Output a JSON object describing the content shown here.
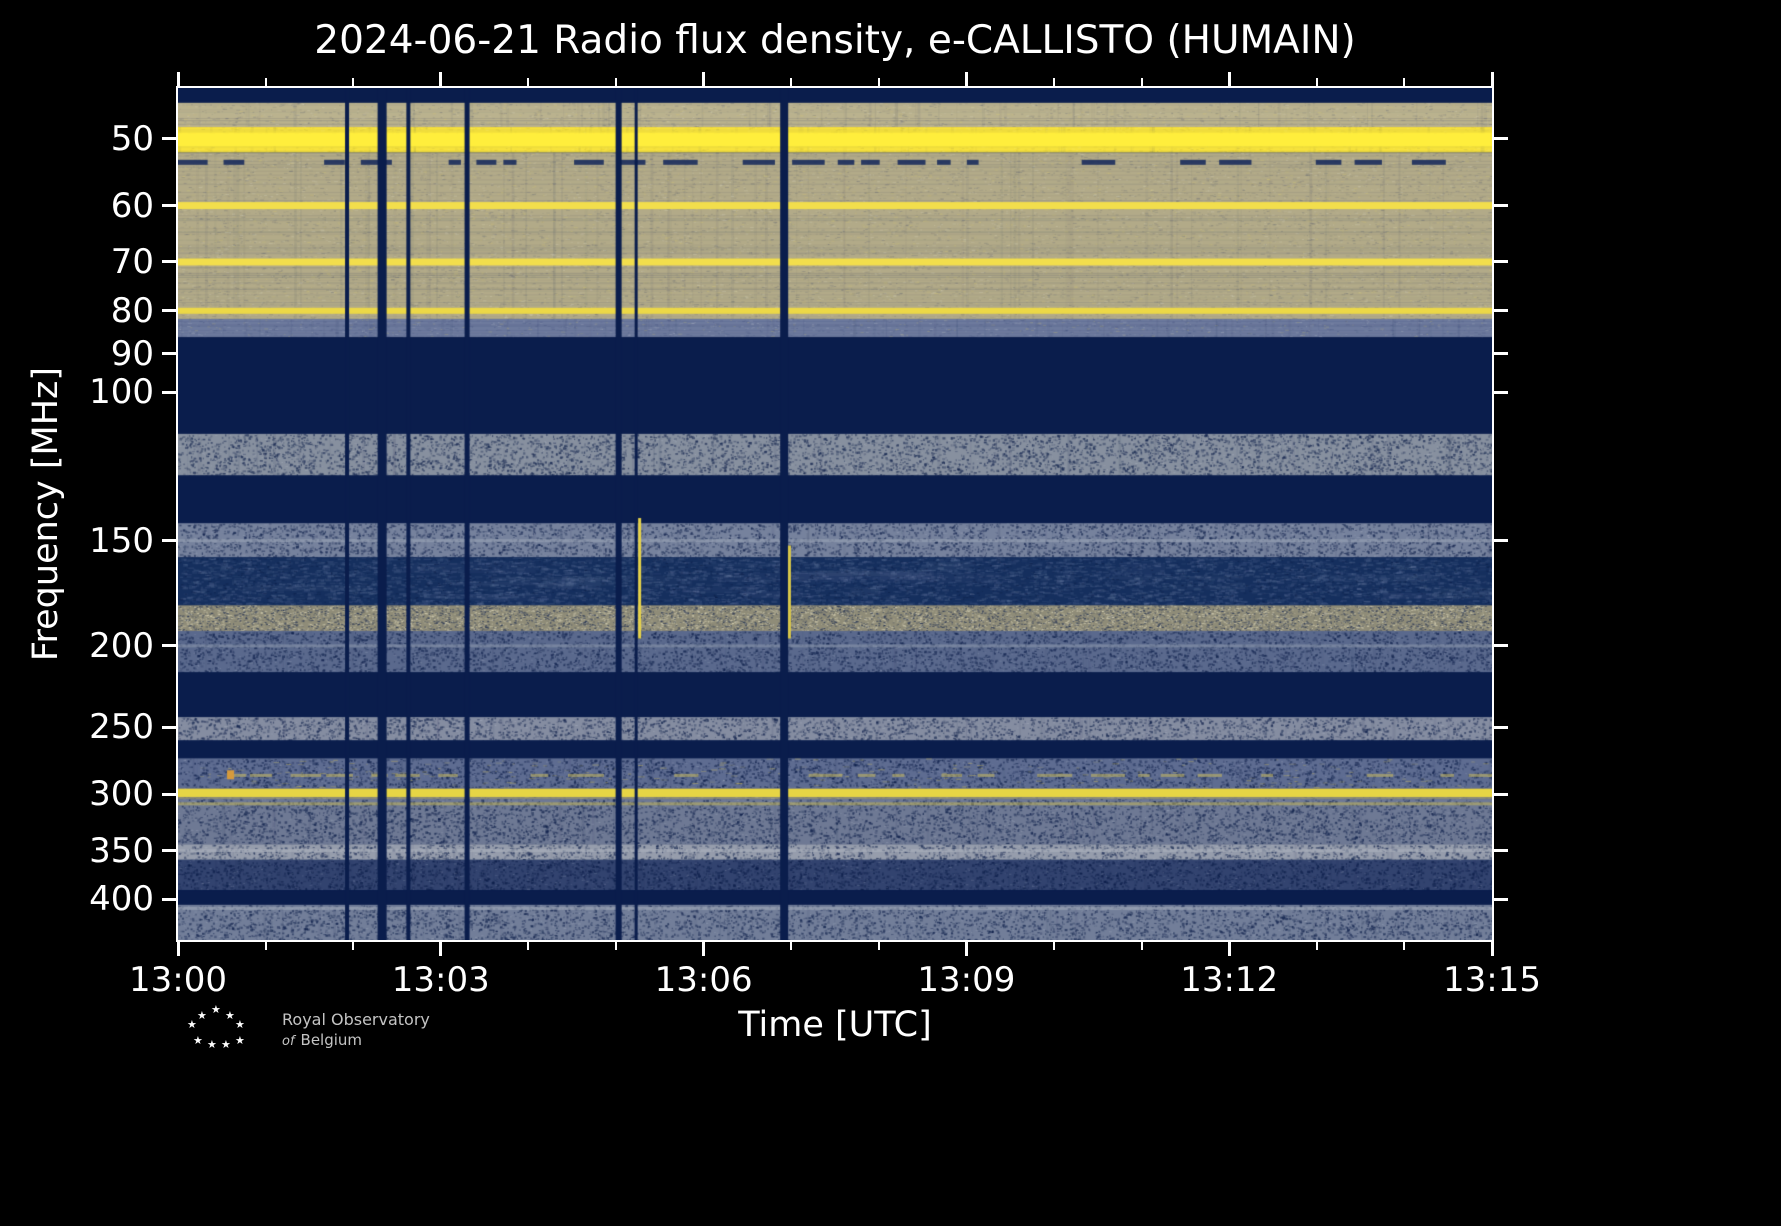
{
  "chart_data": {
    "type": "heatmap",
    "title": "2024-06-21 Radio flux density, e-CALLISTO (HUMAIN)",
    "xlabel": "Time [UTC]",
    "ylabel": "Frequency [MHz]",
    "y_scale": "log",
    "freq_range_mhz": [
      43.5,
      447
    ],
    "time_range_utc": [
      "13:00",
      "13:15"
    ],
    "x_ticks": [
      {
        "minute": 0,
        "label": "13:00"
      },
      {
        "minute": 3,
        "label": "13:03"
      },
      {
        "minute": 6,
        "label": "13:06"
      },
      {
        "minute": 9,
        "label": "13:09"
      },
      {
        "minute": 12,
        "label": "13:12"
      },
      {
        "minute": 15,
        "label": "13:15"
      }
    ],
    "x_minor_minutes": [
      1,
      2,
      4,
      5,
      7,
      8,
      10,
      11,
      13,
      14
    ],
    "y_ticks": [
      50,
      60,
      70,
      80,
      90,
      100,
      150,
      200,
      250,
      300,
      350,
      400
    ],
    "colors": {
      "background": "#000000",
      "frame": "#ffffff",
      "text": "#ffffff",
      "blank": "#0a1d4c",
      "strong_emission": "#ffee3c",
      "quiet_band": "#b2aa88"
    },
    "bands": [
      {
        "f0": 43.5,
        "f1": 45.3,
        "base": "#0a1d4c",
        "style": "flat"
      },
      {
        "f0": 45.3,
        "f1": 48.4,
        "base": "#bab28e",
        "style": "grain"
      },
      {
        "f0": 48.4,
        "f1": 51.9,
        "base": "#f7e13c",
        "style": "yellowband"
      },
      {
        "f0": 51.9,
        "f1": 81.8,
        "base": "#b2aa88",
        "style": "grain"
      },
      {
        "f0": 81.8,
        "f1": 86.0,
        "base": "#6d7a9d",
        "style": "grain"
      },
      {
        "f0": 86.0,
        "f1": 112.0,
        "base": "#0a1d4c",
        "style": "flat"
      },
      {
        "f0": 112.0,
        "f1": 125.5,
        "base": "#87909f",
        "style": "speckle-dark"
      },
      {
        "f0": 125.5,
        "f1": 143.0,
        "base": "#0a1d4c",
        "style": "flat"
      },
      {
        "f0": 143.0,
        "f1": 157.0,
        "base": "#76829d",
        "style": "speckle-dark"
      },
      {
        "f0": 157.0,
        "f1": 179.0,
        "base": "#152f5e",
        "style": "speckle-light"
      },
      {
        "f0": 179.0,
        "f1": 192.0,
        "base": "#8f8c78",
        "style": "speckle-heavy"
      },
      {
        "f0": 192.0,
        "f1": 215.0,
        "base": "#5a698d",
        "style": "speckle-dark"
      },
      {
        "f0": 215.0,
        "f1": 243.0,
        "base": "#0a1d4c",
        "style": "flat"
      },
      {
        "f0": 243.0,
        "f1": 259.0,
        "base": "#858da1",
        "style": "speckle-dark"
      },
      {
        "f0": 259.0,
        "f1": 272.0,
        "base": "#0a1d4c",
        "style": "flat"
      },
      {
        "f0": 272.0,
        "f1": 295.0,
        "base": "#5e6c91",
        "style": "speckle-mixed"
      },
      {
        "f0": 295.0,
        "f1": 304.0,
        "base": "#8a8a78",
        "style": "grain"
      },
      {
        "f0": 304.0,
        "f1": 344.0,
        "base": "#6e7994",
        "style": "speckle-dark"
      },
      {
        "f0": 344.0,
        "f1": 359.0,
        "base": "#969dac",
        "style": "speckle-dark"
      },
      {
        "f0": 359.0,
        "f1": 390.0,
        "base": "#32436f",
        "style": "speckle-dark"
      },
      {
        "f0": 390.0,
        "f1": 406.0,
        "base": "#0a1d4c",
        "style": "flat"
      },
      {
        "f0": 406.0,
        "f1": 447.0,
        "base": "#727e99",
        "style": "speckle-dark"
      }
    ],
    "lines": [
      {
        "f": 50.1,
        "width": 13,
        "color": "#ffee3c",
        "glow": true
      },
      {
        "f": 53.3,
        "width": 5,
        "color": "#12265b",
        "alpha": 0.85,
        "dashed": true
      },
      {
        "f": 60.0,
        "width": 7,
        "color": "#f2de4c"
      },
      {
        "f": 70.0,
        "width": 7,
        "color": "#f2de4c"
      },
      {
        "f": 80.0,
        "width": 6,
        "color": "#ecd847"
      },
      {
        "f": 150.0,
        "width": 3,
        "color": "#9aa4b6",
        "alpha": 0.6
      },
      {
        "f": 200.0,
        "width": 3,
        "color": "#8b96ac",
        "alpha": 0.6
      },
      {
        "f": 285.0,
        "width": 3,
        "color": "#cbbc5e",
        "alpha": 0.55,
        "dashed": true
      },
      {
        "f": 299.0,
        "width": 8,
        "color": "#e6d545"
      },
      {
        "f": 308.0,
        "width": 3,
        "color": "#c9bb55",
        "alpha": 0.5
      },
      {
        "f": 350.0,
        "width": 3,
        "color": "#aab0bd",
        "alpha": 0.6
      },
      {
        "f": 410.0,
        "width": 3,
        "color": "#a3abba",
        "alpha": 0.6
      }
    ],
    "gaps_minutes_after_1300": [
      {
        "t": 1.93,
        "width": 4
      },
      {
        "t": 2.33,
        "width": 9
      },
      {
        "t": 2.63,
        "width": 4
      },
      {
        "t": 3.3,
        "width": 5
      },
      {
        "t": 5.03,
        "width": 6
      },
      {
        "t": 5.23,
        "width": 3
      },
      {
        "t": 6.92,
        "width": 8
      }
    ],
    "bursts": [
      {
        "t": 0.6,
        "f0": 281,
        "f1": 288,
        "width": 7,
        "color": "#d69a3c"
      },
      {
        "t": 5.27,
        "f0": 141,
        "f1": 196,
        "width": 3,
        "color": "#e6d24a"
      },
      {
        "t": 6.98,
        "f0": 152,
        "f1": 196,
        "width": 3,
        "color": "#d8c64a"
      }
    ]
  },
  "logo": {
    "line1": "Royal Observatory",
    "line2_italic": "of",
    "line2_rest": "Belgium",
    "star_glyph": "★"
  }
}
